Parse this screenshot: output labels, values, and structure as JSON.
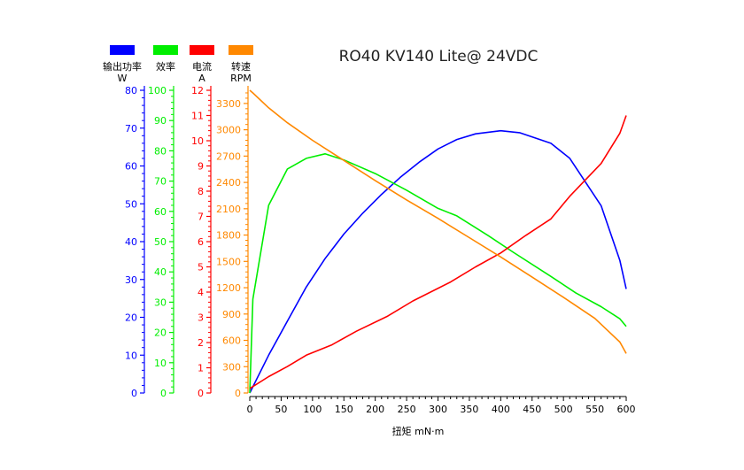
{
  "chart_data": {
    "type": "line",
    "title": "RO40 KV140 Lite@ 24VDC",
    "xlabel": "扭矩 mN·m",
    "x_axis": {
      "range": [
        0,
        600
      ],
      "ticks": [
        0,
        50,
        100,
        150,
        200,
        250,
        300,
        350,
        400,
        450,
        500,
        550,
        600
      ]
    },
    "legend_position": "top-left",
    "grid": false,
    "axes": [
      {
        "id": "power",
        "name": "输出功率",
        "unit": "W",
        "color": "#0000ff",
        "range": [
          0,
          80
        ],
        "ticks": [
          0,
          10,
          20,
          30,
          40,
          50,
          60,
          70,
          80
        ]
      },
      {
        "id": "efficiency",
        "name": "效率",
        "unit": "",
        "color": "#00ee00",
        "range": [
          0,
          100
        ],
        "ticks": [
          0,
          10,
          20,
          30,
          40,
          50,
          60,
          70,
          80,
          90,
          100
        ]
      },
      {
        "id": "current",
        "name": "电流",
        "unit": "A",
        "color": "#ff0000",
        "range": [
          0,
          12
        ],
        "ticks": [
          0,
          1,
          2,
          3,
          4,
          5,
          6,
          7,
          8,
          9,
          10,
          11,
          12
        ]
      },
      {
        "id": "speed",
        "name": "转速",
        "unit": "RPM",
        "color": "#ff8800",
        "range": [
          0,
          3450
        ],
        "ticks": [
          0,
          300,
          600,
          900,
          1200,
          1500,
          1800,
          2100,
          2400,
          2700,
          3000,
          3300
        ]
      }
    ],
    "series": [
      {
        "axis": "power",
        "x": [
          0,
          30,
          60,
          90,
          120,
          150,
          180,
          210,
          240,
          270,
          300,
          330,
          360,
          400,
          430,
          480,
          510,
          560,
          590,
          600
        ],
        "y": [
          0,
          10,
          19,
          28,
          35.5,
          42,
          47.5,
          52.5,
          57,
          61,
          64.5,
          67,
          68.5,
          69.3,
          68.8,
          66,
          62,
          49.5,
          35,
          27.5
        ]
      },
      {
        "axis": "efficiency",
        "x": [
          0,
          5,
          30,
          60,
          90,
          120,
          150,
          200,
          250,
          300,
          330,
          380,
          420,
          480,
          520,
          560,
          590,
          600
        ],
        "y": [
          0,
          31,
          62,
          74,
          77.5,
          79,
          77,
          72.5,
          67,
          61,
          58.5,
          52,
          46.5,
          38.5,
          33,
          28.5,
          24.5,
          22
        ]
      },
      {
        "axis": "current",
        "x": [
          0,
          30,
          60,
          90,
          130,
          170,
          220,
          260,
          320,
          360,
          400,
          440,
          480,
          510,
          560,
          590,
          600
        ],
        "y": [
          0.18,
          0.65,
          1.05,
          1.5,
          1.9,
          2.45,
          3.05,
          3.65,
          4.4,
          5.0,
          5.55,
          6.25,
          6.9,
          7.8,
          9.1,
          10.3,
          11.0
        ]
      },
      {
        "axis": "speed",
        "x": [
          0,
          5,
          30,
          60,
          100,
          150,
          200,
          250,
          300,
          350,
          400,
          450,
          500,
          550,
          590,
          600
        ],
        "y": [
          3450,
          3420,
          3250,
          3080,
          2880,
          2650,
          2420,
          2200,
          1990,
          1770,
          1550,
          1320,
          1090,
          850,
          580,
          450
        ]
      }
    ]
  }
}
